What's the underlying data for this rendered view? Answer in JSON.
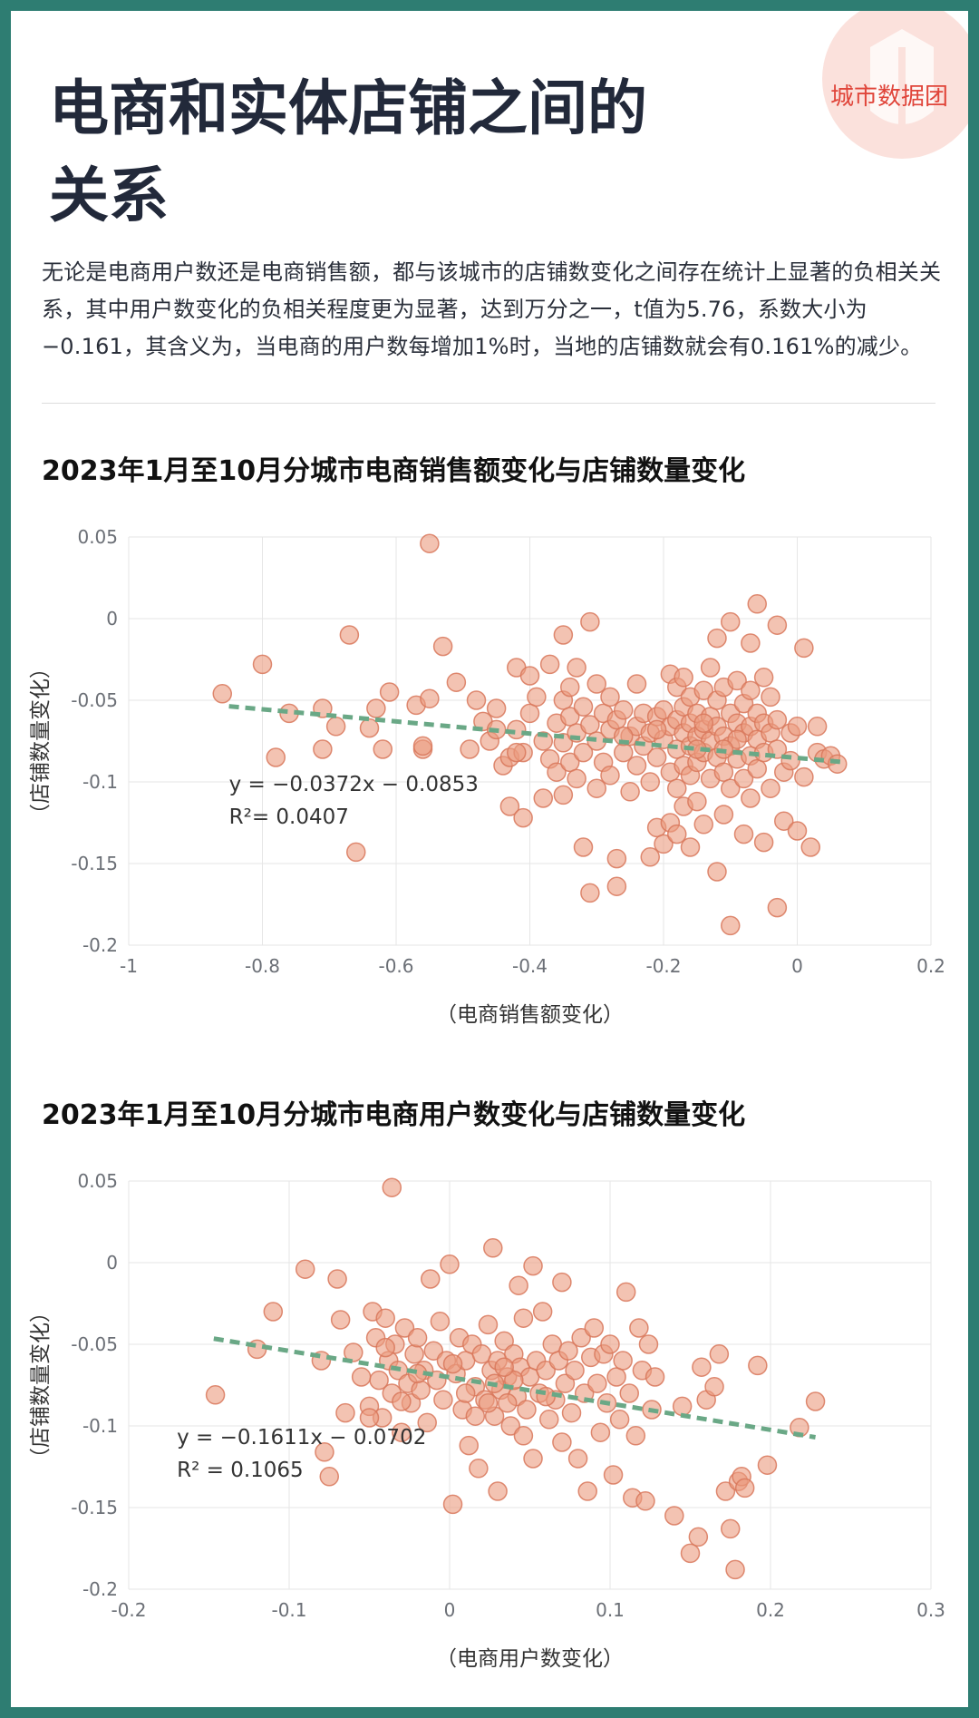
{
  "logo": {
    "text": "城市数据团",
    "color": "#e0453a"
  },
  "page": {
    "title_line1": "电商和实体店铺之间的",
    "title_line2": "关系",
    "intro": "无论是电商用户数还是电商销售额，都与该城市的店铺数变化之间存在统计上显著的负相关关系，其中用户数变化的负相关程度更为显著，达到万分之一，t值为5.76，系数大小为−0.161，其含义为，当电商的用户数每增加1%时，当地的店铺数就会有0.161%的减少。"
  },
  "colors": {
    "point_fill": "#eb9b7f",
    "point_stroke": "#d8775a",
    "trend": "#6aa886",
    "frame": "#2e7d72"
  },
  "chart_data": [
    {
      "type": "scatter",
      "title": "2023年1月至10月分城市电商销售额变化与店铺数量变化",
      "xlabel": "（电商销售额变化）",
      "ylabel": "（店铺数量变化）",
      "xlim": [
        -1,
        0.2
      ],
      "ylim": [
        -0.2,
        0.05
      ],
      "xticks": [
        "-1",
        "-0.8",
        "-0.6",
        "-0.4",
        "-0.2",
        "0",
        "0.2"
      ],
      "yticks": [
        "0.05",
        "0",
        "-0.05",
        "-0.1",
        "-0.15",
        "-0.2"
      ],
      "grid": true,
      "trendline": {
        "slope": -0.0372,
        "intercept": -0.0853,
        "x_range": [
          -0.85,
          0.07
        ],
        "style": "dashed"
      },
      "equation": "y = −0.0372x − 0.0853",
      "r2": "R²= 0.0407",
      "points": [
        [
          -0.55,
          0.046
        ],
        [
          -0.86,
          -0.046
        ],
        [
          -0.8,
          -0.028
        ],
        [
          -0.78,
          -0.085
        ],
        [
          -0.76,
          -0.058
        ],
        [
          -0.71,
          -0.055
        ],
        [
          -0.71,
          -0.08
        ],
        [
          -0.69,
          -0.066
        ],
        [
          -0.67,
          -0.01
        ],
        [
          -0.66,
          -0.143
        ],
        [
          -0.64,
          -0.067
        ],
        [
          -0.63,
          -0.055
        ],
        [
          -0.62,
          -0.08
        ],
        [
          -0.61,
          -0.045
        ],
        [
          -0.57,
          -0.053
        ],
        [
          -0.56,
          -0.08
        ],
        [
          -0.56,
          -0.078
        ],
        [
          -0.55,
          -0.049
        ],
        [
          -0.53,
          -0.017
        ],
        [
          -0.51,
          -0.039
        ],
        [
          -0.49,
          -0.08
        ],
        [
          -0.48,
          -0.05
        ],
        [
          -0.47,
          -0.063
        ],
        [
          -0.46,
          -0.075
        ],
        [
          -0.45,
          -0.055
        ],
        [
          -0.45,
          -0.068
        ],
        [
          -0.44,
          -0.09
        ],
        [
          -0.43,
          -0.085
        ],
        [
          -0.43,
          -0.115
        ],
        [
          -0.42,
          -0.03
        ],
        [
          -0.42,
          -0.068
        ],
        [
          -0.41,
          -0.082
        ],
        [
          -0.41,
          -0.122
        ],
        [
          -0.4,
          -0.035
        ],
        [
          -0.4,
          -0.058
        ],
        [
          -0.39,
          -0.048
        ],
        [
          -0.38,
          -0.075
        ],
        [
          -0.38,
          -0.11
        ],
        [
          -0.37,
          -0.028
        ],
        [
          -0.37,
          -0.086
        ],
        [
          -0.36,
          -0.064
        ],
        [
          -0.36,
          -0.094
        ],
        [
          -0.35,
          -0.01
        ],
        [
          -0.35,
          -0.05
        ],
        [
          -0.35,
          -0.076
        ],
        [
          -0.35,
          -0.108
        ],
        [
          -0.34,
          -0.042
        ],
        [
          -0.34,
          -0.06
        ],
        [
          -0.34,
          -0.088
        ],
        [
          -0.33,
          -0.03
        ],
        [
          -0.33,
          -0.07
        ],
        [
          -0.33,
          -0.098
        ],
        [
          -0.32,
          -0.14
        ],
        [
          -0.32,
          -0.054
        ],
        [
          -0.32,
          -0.082
        ],
        [
          -0.31,
          -0.002
        ],
        [
          -0.31,
          -0.065
        ],
        [
          -0.31,
          -0.168
        ],
        [
          -0.3,
          -0.04
        ],
        [
          -0.3,
          -0.075
        ],
        [
          -0.3,
          -0.104
        ],
        [
          -0.29,
          -0.058
        ],
        [
          -0.29,
          -0.088
        ],
        [
          -0.28,
          -0.048
        ],
        [
          -0.28,
          -0.068
        ],
        [
          -0.28,
          -0.096
        ],
        [
          -0.27,
          -0.062
        ],
        [
          -0.27,
          -0.147
        ],
        [
          -0.27,
          -0.164
        ],
        [
          -0.26,
          -0.082
        ],
        [
          -0.26,
          -0.056
        ],
        [
          -0.25,
          -0.072
        ],
        [
          -0.25,
          -0.106
        ],
        [
          -0.24,
          -0.04
        ],
        [
          -0.24,
          -0.066
        ],
        [
          -0.24,
          -0.09
        ],
        [
          -0.23,
          -0.058
        ],
        [
          -0.23,
          -0.078
        ],
        [
          -0.22,
          -0.1
        ],
        [
          -0.22,
          -0.07
        ],
        [
          -0.22,
          -0.146
        ],
        [
          -0.21,
          -0.06
        ],
        [
          -0.21,
          -0.085
        ],
        [
          -0.21,
          -0.128
        ],
        [
          -0.2,
          -0.056
        ],
        [
          -0.2,
          -0.074
        ],
        [
          -0.2,
          -0.138
        ],
        [
          -0.19,
          -0.034
        ],
        [
          -0.19,
          -0.066
        ],
        [
          -0.19,
          -0.094
        ],
        [
          -0.19,
          -0.125
        ],
        [
          -0.18,
          -0.042
        ],
        [
          -0.18,
          -0.062
        ],
        [
          -0.18,
          -0.08
        ],
        [
          -0.18,
          -0.104
        ],
        [
          -0.18,
          -0.132
        ],
        [
          -0.17,
          -0.036
        ],
        [
          -0.17,
          -0.054
        ],
        [
          -0.17,
          -0.07
        ],
        [
          -0.17,
          -0.09
        ],
        [
          -0.17,
          -0.115
        ],
        [
          -0.16,
          -0.048
        ],
        [
          -0.16,
          -0.064
        ],
        [
          -0.16,
          -0.078
        ],
        [
          -0.16,
          -0.096
        ],
        [
          -0.16,
          -0.14
        ],
        [
          -0.15,
          -0.058
        ],
        [
          -0.15,
          -0.072
        ],
        [
          -0.15,
          -0.088
        ],
        [
          -0.15,
          -0.112
        ],
        [
          -0.14,
          -0.044
        ],
        [
          -0.14,
          -0.068
        ],
        [
          -0.14,
          -0.082
        ],
        [
          -0.14,
          -0.126
        ],
        [
          -0.13,
          -0.03
        ],
        [
          -0.13,
          -0.06
        ],
        [
          -0.13,
          -0.075
        ],
        [
          -0.13,
          -0.098
        ],
        [
          -0.12,
          -0.012
        ],
        [
          -0.12,
          -0.05
        ],
        [
          -0.12,
          -0.066
        ],
        [
          -0.12,
          -0.085
        ],
        [
          -0.12,
          -0.155
        ],
        [
          -0.11,
          -0.042
        ],
        [
          -0.11,
          -0.072
        ],
        [
          -0.11,
          -0.094
        ],
        [
          -0.11,
          -0.12
        ],
        [
          -0.1,
          -0.188
        ],
        [
          -0.1,
          -0.002
        ],
        [
          -0.1,
          -0.058
        ],
        [
          -0.1,
          -0.078
        ],
        [
          -0.1,
          -0.104
        ],
        [
          -0.09,
          -0.038
        ],
        [
          -0.09,
          -0.064
        ],
        [
          -0.09,
          -0.086
        ],
        [
          -0.08,
          -0.052
        ],
        [
          -0.08,
          -0.07
        ],
        [
          -0.08,
          -0.098
        ],
        [
          -0.08,
          -0.132
        ],
        [
          -0.07,
          -0.015
        ],
        [
          -0.07,
          -0.044
        ],
        [
          -0.07,
          -0.066
        ],
        [
          -0.07,
          -0.084
        ],
        [
          -0.07,
          -0.11
        ],
        [
          -0.06,
          0.009
        ],
        [
          -0.06,
          -0.058
        ],
        [
          -0.06,
          -0.074
        ],
        [
          -0.06,
          -0.092
        ],
        [
          -0.05,
          -0.036
        ],
        [
          -0.05,
          -0.064
        ],
        [
          -0.05,
          -0.082
        ],
        [
          -0.05,
          -0.137
        ],
        [
          -0.04,
          -0.048
        ],
        [
          -0.04,
          -0.07
        ],
        [
          -0.04,
          -0.104
        ],
        [
          -0.03,
          -0.004
        ],
        [
          -0.03,
          -0.062
        ],
        [
          -0.03,
          -0.08
        ],
        [
          -0.03,
          -0.177
        ],
        [
          -0.02,
          -0.094
        ],
        [
          -0.02,
          -0.124
        ],
        [
          -0.01,
          -0.07
        ],
        [
          -0.01,
          -0.087
        ],
        [
          0.0,
          -0.066
        ],
        [
          0.0,
          -0.13
        ],
        [
          0.01,
          -0.018
        ],
        [
          0.01,
          -0.097
        ],
        [
          0.02,
          -0.14
        ],
        [
          0.03,
          -0.066
        ],
        [
          0.03,
          -0.082
        ],
        [
          0.04,
          -0.086
        ],
        [
          0.05,
          -0.084
        ],
        [
          0.06,
          -0.089
        ],
        [
          -0.42,
          -0.082
        ],
        [
          -0.26,
          -0.072
        ],
        [
          -0.21,
          -0.068
        ],
        [
          -0.14,
          -0.064
        ],
        [
          -0.09,
          -0.074
        ],
        [
          -0.11,
          -0.08
        ],
        [
          -0.15,
          -0.08
        ]
      ]
    },
    {
      "type": "scatter",
      "title": "2023年1月至10月分城市电商用户数变化与店铺数量变化",
      "xlabel": "（电商用户数变化）",
      "ylabel": "（店铺数量变化）",
      "xlim": [
        -0.2,
        0.3
      ],
      "ylim": [
        -0.2,
        0.05
      ],
      "xticks": [
        "-0.2",
        "-0.1",
        "0",
        "0.1",
        "0.2",
        "0.3"
      ],
      "yticks": [
        "0.05",
        "0",
        "-0.05",
        "-0.1",
        "-0.15",
        "-0.2"
      ],
      "grid": true,
      "trendline": {
        "slope": -0.1611,
        "intercept": -0.0702,
        "x_range": [
          -0.147,
          0.228
        ],
        "style": "dashed"
      },
      "equation": "y = −0.1611x − 0.0702",
      "r2": "R² = 0.1065",
      "points": [
        [
          -0.036,
          0.046
        ],
        [
          -0.146,
          -0.081
        ],
        [
          -0.12,
          -0.053
        ],
        [
          -0.11,
          -0.03
        ],
        [
          -0.09,
          -0.004
        ],
        [
          -0.08,
          -0.06
        ],
        [
          -0.078,
          -0.116
        ],
        [
          -0.075,
          -0.131
        ],
        [
          -0.07,
          -0.01
        ],
        [
          -0.068,
          -0.035
        ],
        [
          -0.065,
          -0.092
        ],
        [
          -0.06,
          -0.055
        ],
        [
          -0.055,
          -0.07
        ],
        [
          -0.05,
          -0.088
        ],
        [
          -0.048,
          -0.03
        ],
        [
          -0.046,
          -0.046
        ],
        [
          -0.044,
          -0.072
        ],
        [
          -0.042,
          -0.095
        ],
        [
          -0.04,
          -0.034
        ],
        [
          -0.038,
          -0.06
        ],
        [
          -0.036,
          -0.08
        ],
        [
          -0.034,
          -0.05
        ],
        [
          -0.032,
          -0.066
        ],
        [
          -0.03,
          -0.104
        ],
        [
          -0.028,
          -0.04
        ],
        [
          -0.026,
          -0.074
        ],
        [
          -0.024,
          -0.086
        ],
        [
          -0.022,
          -0.056
        ],
        [
          -0.02,
          -0.046
        ],
        [
          -0.018,
          -0.078
        ],
        [
          -0.016,
          -0.066
        ],
        [
          -0.014,
          -0.098
        ],
        [
          -0.012,
          -0.01
        ],
        [
          -0.01,
          -0.054
        ],
        [
          -0.008,
          -0.072
        ],
        [
          -0.006,
          -0.036
        ],
        [
          -0.004,
          -0.084
        ],
        [
          -0.002,
          -0.06
        ],
        [
          0.0,
          -0.001
        ],
        [
          0.002,
          -0.148
        ],
        [
          0.004,
          -0.068
        ],
        [
          0.006,
          -0.046
        ],
        [
          0.008,
          -0.09
        ],
        [
          0.01,
          -0.06
        ],
        [
          0.012,
          -0.112
        ],
        [
          0.014,
          -0.05
        ],
        [
          0.016,
          -0.076
        ],
        [
          0.018,
          -0.126
        ],
        [
          0.02,
          -0.056
        ],
        [
          0.022,
          -0.084
        ],
        [
          0.024,
          -0.038
        ],
        [
          0.026,
          -0.066
        ],
        [
          0.027,
          0.009
        ],
        [
          0.028,
          -0.094
        ],
        [
          0.03,
          -0.06
        ],
        [
          0.03,
          -0.14
        ],
        [
          0.032,
          -0.078
        ],
        [
          0.034,
          -0.048
        ],
        [
          0.036,
          -0.07
        ],
        [
          0.038,
          -0.1
        ],
        [
          0.04,
          -0.056
        ],
        [
          0.042,
          -0.082
        ],
        [
          0.043,
          -0.014
        ],
        [
          0.044,
          -0.064
        ],
        [
          0.046,
          -0.034
        ],
        [
          0.048,
          -0.09
        ],
        [
          0.05,
          -0.07
        ],
        [
          0.052,
          -0.002
        ],
        [
          0.052,
          -0.12
        ],
        [
          0.054,
          -0.06
        ],
        [
          0.056,
          -0.08
        ],
        [
          0.058,
          -0.03
        ],
        [
          0.06,
          -0.066
        ],
        [
          0.062,
          -0.096
        ],
        [
          0.064,
          -0.05
        ],
        [
          0.066,
          -0.084
        ],
        [
          0.068,
          -0.06
        ],
        [
          0.07,
          -0.012
        ],
        [
          0.07,
          -0.11
        ],
        [
          0.072,
          -0.074
        ],
        [
          0.074,
          -0.054
        ],
        [
          0.076,
          -0.092
        ],
        [
          0.078,
          -0.066
        ],
        [
          0.08,
          -0.12
        ],
        [
          0.082,
          -0.046
        ],
        [
          0.084,
          -0.08
        ],
        [
          0.086,
          -0.14
        ],
        [
          0.088,
          -0.058
        ],
        [
          0.09,
          -0.04
        ],
        [
          0.092,
          -0.074
        ],
        [
          0.094,
          -0.104
        ],
        [
          0.096,
          -0.056
        ],
        [
          0.098,
          -0.086
        ],
        [
          0.1,
          -0.05
        ],
        [
          0.102,
          -0.13
        ],
        [
          0.104,
          -0.07
        ],
        [
          0.106,
          -0.096
        ],
        [
          0.108,
          -0.06
        ],
        [
          0.11,
          -0.018
        ],
        [
          0.112,
          -0.08
        ],
        [
          0.114,
          -0.144
        ],
        [
          0.116,
          -0.106
        ],
        [
          0.118,
          -0.04
        ],
        [
          0.12,
          -0.066
        ],
        [
          0.122,
          -0.146
        ],
        [
          0.124,
          -0.05
        ],
        [
          0.126,
          -0.09
        ],
        [
          0.128,
          -0.07
        ],
        [
          0.14,
          -0.155
        ],
        [
          0.145,
          -0.088
        ],
        [
          0.15,
          -0.178
        ],
        [
          0.155,
          -0.168
        ],
        [
          0.157,
          -0.064
        ],
        [
          0.16,
          -0.084
        ],
        [
          0.165,
          -0.076
        ],
        [
          0.168,
          -0.056
        ],
        [
          0.172,
          -0.14
        ],
        [
          0.175,
          -0.163
        ],
        [
          0.178,
          -0.188
        ],
        [
          0.18,
          -0.134
        ],
        [
          0.182,
          -0.131
        ],
        [
          0.184,
          -0.138
        ],
        [
          0.192,
          -0.063
        ],
        [
          0.198,
          -0.124
        ],
        [
          0.218,
          -0.101
        ],
        [
          0.228,
          -0.085
        ],
        [
          -0.05,
          -0.095
        ],
        [
          -0.03,
          -0.085
        ],
        [
          0.01,
          -0.08
        ],
        [
          0.024,
          -0.086
        ],
        [
          0.036,
          -0.086
        ],
        [
          0.04,
          -0.072
        ],
        [
          0.06,
          -0.082
        ],
        [
          0.016,
          -0.094
        ],
        [
          0.028,
          -0.074
        ],
        [
          -0.02,
          -0.068
        ],
        [
          0.046,
          -0.106
        ],
        [
          0.034,
          -0.064
        ],
        [
          0.002,
          -0.062
        ],
        [
          -0.04,
          -0.052
        ]
      ]
    }
  ]
}
